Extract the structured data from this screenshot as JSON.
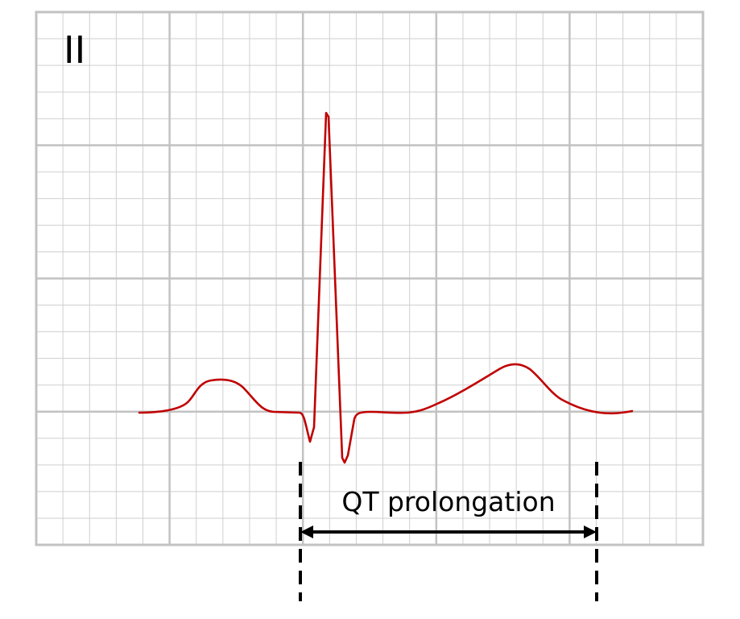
{
  "lead": {
    "label": "II"
  },
  "interval": {
    "label": "QT prolongation"
  },
  "colors": {
    "trace": "#c00000",
    "grid_major": "#c2c2c2",
    "grid_minor": "#cfcfcf",
    "annotation": "#000000"
  }
}
